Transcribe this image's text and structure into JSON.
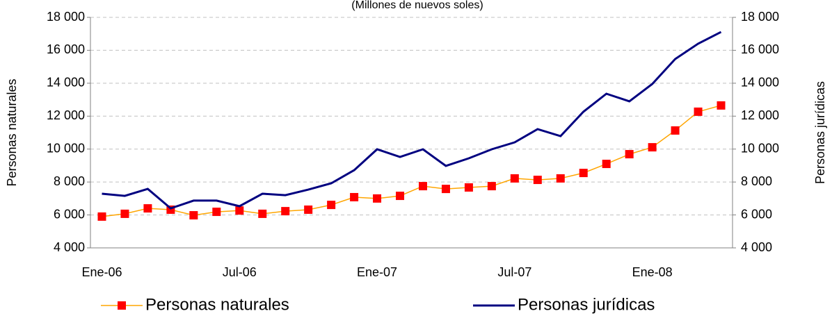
{
  "chart_data": {
    "type": "line",
    "subtitle": "(Millones de nuevos soles)",
    "ylabel": "Personas naturales",
    "y2label": "Personas jurídicas",
    "categories": [
      "Ene-06",
      null,
      null,
      null,
      null,
      null,
      "Jul-06",
      null,
      null,
      null,
      null,
      null,
      "Ene-07",
      null,
      null,
      null,
      null,
      null,
      "Jul-07",
      null,
      null,
      null,
      null,
      null,
      "Ene-08",
      null,
      null,
      null
    ],
    "series": [
      {
        "name": "Personas naturales",
        "color": "#ff0000",
        "line_color": "#ffa500",
        "marker": "square",
        "values": [
          5900,
          6070,
          6400,
          6320,
          5980,
          6190,
          6270,
          6070,
          6230,
          6320,
          6610,
          7080,
          7000,
          7160,
          7750,
          7580,
          7670,
          7750,
          8220,
          8130,
          8220,
          8550,
          9100,
          9690,
          10110,
          11130,
          12270,
          12650
        ]
      },
      {
        "name": "Personas jurídicas",
        "color": "#000080",
        "axis": "y2",
        "values": [
          7290,
          7160,
          7580,
          6400,
          6870,
          6870,
          6530,
          7290,
          7200,
          7540,
          7920,
          8720,
          9990,
          9520,
          9990,
          8980,
          9440,
          9990,
          10410,
          11210,
          10790,
          12270,
          13360,
          12900,
          13950,
          15470,
          16400,
          17110
        ]
      }
    ],
    "ylim": [
      4000,
      18000
    ],
    "yticks": [
      {
        "value": 4000,
        "label": "4 000"
      },
      {
        "value": 6000,
        "label": "6 000"
      },
      {
        "value": 8000,
        "label": "8 000"
      },
      {
        "value": 10000,
        "label": "10 000"
      },
      {
        "value": 12000,
        "label": "12 000"
      },
      {
        "value": 14000,
        "label": "14 000"
      },
      {
        "value": 16000,
        "label": "16 000"
      },
      {
        "value": 18000,
        "label": "18 000"
      }
    ],
    "y2lim": [
      4000,
      18000
    ],
    "y2ticks": [
      {
        "value": 4000,
        "label": "4 000"
      },
      {
        "value": 6000,
        "label": "6 000"
      },
      {
        "value": 8000,
        "label": "8 000"
      },
      {
        "value": 10000,
        "label": "10 000"
      },
      {
        "value": 12000,
        "label": "12 000"
      },
      {
        "value": 14000,
        "label": "14 000"
      },
      {
        "value": 16000,
        "label": "16 000"
      },
      {
        "value": 18000,
        "label": "18 000"
      }
    ],
    "grid": true,
    "legend": "bottom"
  }
}
